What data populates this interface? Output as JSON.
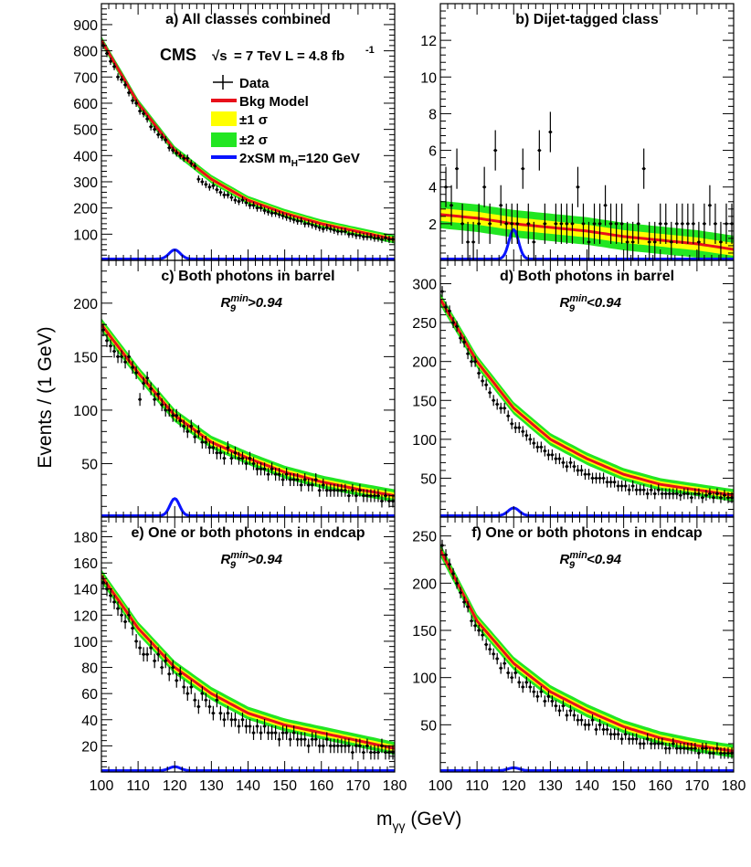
{
  "figure": {
    "y_axis_label": "Events / (1 GeV)",
    "x_axis_label": "m",
    "x_axis_label_sub": "γγ",
    "x_axis_label_unit": " (GeV)"
  },
  "legend": {
    "experiment": "CMS",
    "sqrt_s": "√s",
    "energy": " = 7 TeV  L = 4.8 fb",
    "lumi_exp": "-1",
    "items": [
      {
        "label": "Data",
        "kind": "data",
        "color": "#000000"
      },
      {
        "label": "Bkg Model",
        "kind": "line",
        "color": "#e8101a"
      },
      {
        "label": "±1 σ",
        "kind": "band",
        "color": "#ffff00"
      },
      {
        "label": "±2 σ",
        "kind": "band",
        "color": "#22e622"
      },
      {
        "label": "2xSM m",
        "label_sub": "H",
        "label_rest": "=120 GeV",
        "kind": "line",
        "color": "#0a14ff"
      }
    ]
  },
  "colors": {
    "bkg": "#e8101a",
    "band1": "#ffff00",
    "band2": "#22e622",
    "signal": "#0a14ff",
    "data": "#000000"
  },
  "chart_data": [
    {
      "id": "a",
      "type": "line",
      "title": "a) All classes combined",
      "subtitle": "",
      "subtitle_sup": "",
      "subtitle_sub": "",
      "subtitle_rest": "",
      "xlim": [
        100,
        180
      ],
      "ylim": [
        0,
        980
      ],
      "xticks": [
        100,
        110,
        120,
        130,
        140,
        150,
        160,
        170,
        180
      ],
      "yticks": [
        100,
        200,
        300,
        400,
        500,
        600,
        700,
        800,
        900
      ],
      "bkg": {
        "x": [
          100,
          110,
          120,
          130,
          140,
          150,
          160,
          170,
          180
        ],
        "y": [
          840,
          600,
          420,
          310,
          230,
          180,
          140,
          110,
          80
        ]
      },
      "band1": 8,
      "band2": 16,
      "signal": {
        "mass": 120,
        "peak": 35,
        "sigma": 1.5
      },
      "data": {
        "x0": 100,
        "step": 1,
        "y": [
          820,
          790,
          760,
          740,
          700,
          690,
          670,
          640,
          610,
          600,
          570,
          560,
          540,
          510,
          500,
          480,
          470,
          460,
          430,
          420,
          410,
          400,
          390,
          390,
          370,
          360,
          310,
          300,
          290,
          280,
          285,
          270,
          260,
          250,
          250,
          240,
          230,
          225,
          230,
          220,
          210,
          210,
          200,
          200,
          190,
          185,
          180,
          180,
          175,
          170,
          165,
          160,
          155,
          150,
          150,
          140,
          140,
          135,
          130,
          125,
          120,
          125,
          120,
          115,
          110,
          110,
          110,
          100,
          100,
          95,
          95,
          90,
          90,
          90,
          85,
          85,
          80,
          85,
          80,
          80
        ],
        "err": 28
      }
    },
    {
      "id": "b",
      "type": "line",
      "title": "b) Dijet-tagged class",
      "subtitle": "",
      "subtitle_sup": "",
      "subtitle_sub": "",
      "subtitle_rest": "",
      "xlim": [
        100,
        180
      ],
      "ylim": [
        0,
        14
      ],
      "xticks": [
        100,
        110,
        120,
        130,
        140,
        150,
        160,
        170,
        180
      ],
      "yticks": [
        2,
        4,
        6,
        8,
        10,
        12
      ],
      "bkg": {
        "x": [
          100,
          110,
          120,
          130,
          140,
          150,
          160,
          170,
          180
        ],
        "y": [
          2.5,
          2.3,
          2.0,
          1.8,
          1.6,
          1.3,
          1.1,
          0.9,
          0.6
        ]
      },
      "band1": 0.35,
      "band2": 0.75,
      "signal": {
        "mass": 120,
        "peak": 1.6,
        "sigma": 1.3
      },
      "data": {
        "x0": 101.5,
        "step": 1.5,
        "y": [
          4,
          3,
          5,
          2,
          1,
          1,
          2,
          4,
          2,
          6,
          3,
          2,
          2,
          2,
          5,
          2,
          1,
          6,
          2,
          7,
          2,
          2,
          2,
          2,
          4,
          2,
          1,
          2,
          2,
          3,
          2,
          2,
          2,
          1,
          1,
          2,
          5,
          1,
          1,
          2,
          2,
          1,
          2,
          2,
          2,
          2,
          1,
          2,
          3,
          2,
          1,
          2,
          2
        ],
        "err": 2.2
      }
    },
    {
      "id": "c",
      "type": "line",
      "title": "c) Both photons in barrel",
      "subtitle": "R",
      "subtitle_sup": "min",
      "subtitle_sub": "9",
      "subtitle_rest": ">0.94",
      "xlim": [
        100,
        180
      ],
      "ylim": [
        0,
        240
      ],
      "xticks": [
        100,
        110,
        120,
        130,
        140,
        150,
        160,
        170,
        180
      ],
      "yticks": [
        50,
        100,
        150,
        200
      ],
      "bkg": {
        "x": [
          100,
          110,
          120,
          130,
          140,
          150,
          160,
          170,
          180
        ],
        "y": [
          180,
          135,
          95,
          70,
          55,
          42,
          33,
          26,
          20
        ]
      },
      "band1": 3,
      "band2": 6,
      "signal": {
        "mass": 120,
        "peak": 16,
        "sigma": 1.3
      },
      "data": {
        "x0": 100,
        "step": 1,
        "y": [
          175,
          165,
          160,
          155,
          150,
          150,
          145,
          150,
          140,
          135,
          110,
          125,
          130,
          120,
          110,
          115,
          105,
          100,
          100,
          95,
          95,
          90,
          85,
          80,
          85,
          75,
          80,
          70,
          70,
          65,
          65,
          60,
          60,
          55,
          65,
          55,
          60,
          55,
          55,
          50,
          55,
          50,
          45,
          45,
          45,
          40,
          45,
          40,
          40,
          35,
          40,
          35,
          35,
          35,
          30,
          35,
          30,
          30,
          35,
          25,
          30,
          25,
          25,
          25,
          25,
          25,
          25,
          20,
          25,
          20,
          25,
          20,
          20,
          20,
          20,
          20,
          15,
          20,
          15,
          15
        ],
        "err": 12
      }
    },
    {
      "id": "d",
      "type": "line",
      "title": "d) Both photons in barrel",
      "subtitle": "R",
      "subtitle_sup": "min",
      "subtitle_sub": "9",
      "subtitle_rest": "<0.94",
      "xlim": [
        100,
        180
      ],
      "ylim": [
        0,
        330
      ],
      "xticks": [
        100,
        110,
        120,
        130,
        140,
        150,
        160,
        170,
        180
      ],
      "yticks": [
        50,
        100,
        150,
        200,
        250,
        300
      ],
      "bkg": {
        "x": [
          100,
          110,
          120,
          130,
          140,
          150,
          160,
          170,
          180
        ],
        "y": [
          280,
          200,
          140,
          100,
          75,
          55,
          42,
          35,
          28
        ]
      },
      "band1": 4,
      "band2": 8,
      "signal": {
        "mass": 120,
        "peak": 10,
        "sigma": 1.5
      },
      "data": {
        "x0": 100,
        "step": 1,
        "y": [
          290,
          270,
          265,
          250,
          245,
          230,
          225,
          210,
          200,
          200,
          185,
          175,
          170,
          160,
          150,
          145,
          140,
          140,
          130,
          120,
          115,
          115,
          110,
          105,
          100,
          95,
          90,
          90,
          85,
          80,
          80,
          75,
          75,
          70,
          65,
          70,
          65,
          60,
          60,
          55,
          55,
          50,
          50,
          50,
          50,
          45,
          45,
          45,
          40,
          40,
          40,
          35,
          40,
          35,
          35,
          35,
          30,
          35,
          30,
          35,
          30,
          30,
          30,
          30,
          30,
          28,
          30,
          30,
          25,
          30,
          30,
          25,
          28,
          30,
          25,
          30,
          25,
          28,
          25,
          25
        ],
        "err": 14
      }
    },
    {
      "id": "e",
      "type": "line",
      "title": "e) One or both photons in endcap",
      "subtitle": "R",
      "subtitle_sup": "min",
      "subtitle_sub": "9",
      "subtitle_rest": ">0.94",
      "xlim": [
        100,
        180
      ],
      "ylim": [
        0,
        195
      ],
      "xticks": [
        100,
        110,
        120,
        130,
        140,
        150,
        160,
        170,
        180
      ],
      "yticks": [
        20,
        40,
        60,
        80,
        100,
        120,
        140,
        160,
        180
      ],
      "bkg": {
        "x": [
          100,
          110,
          120,
          130,
          140,
          150,
          160,
          170,
          180
        ],
        "y": [
          150,
          110,
          80,
          60,
          45,
          36,
          30,
          24,
          18
        ]
      },
      "band1": 2.5,
      "band2": 5,
      "signal": {
        "mass": 120,
        "peak": 3,
        "sigma": 1.5
      },
      "data": {
        "x0": 100,
        "step": 1,
        "y": [
          145,
          140,
          135,
          130,
          125,
          120,
          115,
          120,
          110,
          100,
          95,
          90,
          90,
          95,
          85,
          90,
          80,
          85,
          75,
          80,
          70,
          75,
          65,
          60,
          65,
          55,
          50,
          60,
          55,
          50,
          45,
          55,
          45,
          40,
          45,
          40,
          40,
          35,
          40,
          35,
          35,
          30,
          35,
          30,
          35,
          30,
          30,
          30,
          25,
          30,
          30,
          25,
          30,
          25,
          25,
          25,
          20,
          25,
          25,
          20,
          20,
          25,
          20,
          20,
          20,
          20,
          20,
          20,
          15,
          20,
          20,
          15,
          20,
          15,
          15,
          15,
          20,
          15,
          15,
          15
        ],
        "err": 11
      }
    },
    {
      "id": "f",
      "type": "line",
      "title": "f) One or both photons in endcap",
      "subtitle": "R",
      "subtitle_sup": "min",
      "subtitle_sub": "9",
      "subtitle_rest": "<0.94",
      "xlim": [
        100,
        180
      ],
      "ylim": [
        0,
        270
      ],
      "xticks": [
        100,
        110,
        120,
        130,
        140,
        150,
        160,
        170,
        180
      ],
      "yticks": [
        50,
        100,
        150,
        200,
        250
      ],
      "bkg": {
        "x": [
          100,
          110,
          120,
          130,
          140,
          150,
          160,
          170,
          180
        ],
        "y": [
          235,
          160,
          115,
          85,
          65,
          48,
          36,
          28,
          22
        ]
      },
      "band1": 3.5,
      "band2": 7,
      "signal": {
        "mass": 120,
        "peak": 3,
        "sigma": 1.5
      },
      "data": {
        "x0": 100,
        "step": 1,
        "y": [
          240,
          230,
          220,
          210,
          200,
          190,
          180,
          175,
          160,
          155,
          150,
          145,
          135,
          130,
          125,
          120,
          110,
          115,
          105,
          100,
          105,
          95,
          90,
          95,
          90,
          85,
          80,
          85,
          75,
          80,
          75,
          70,
          65,
          70,
          60,
          65,
          60,
          55,
          55,
          50,
          50,
          55,
          45,
          50,
          45,
          45,
          40,
          40,
          40,
          35,
          40,
          35,
          35,
          35,
          30,
          30,
          35,
          30,
          30,
          30,
          30,
          25,
          25,
          30,
          25,
          25,
          25,
          25,
          25,
          25,
          20,
          25,
          25,
          20,
          20,
          25,
          20,
          20,
          20,
          20
        ],
        "err": 12
      }
    }
  ]
}
